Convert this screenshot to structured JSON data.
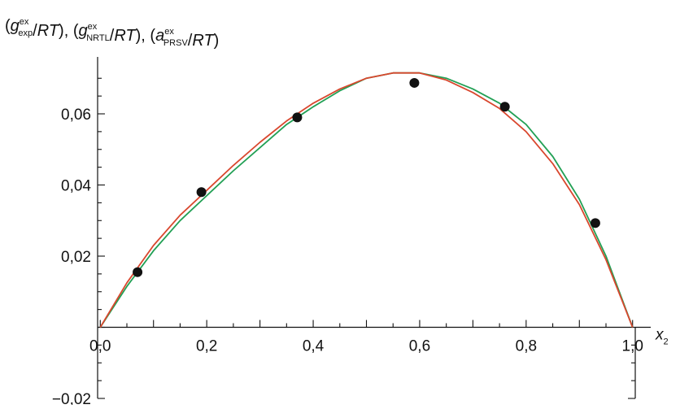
{
  "chart_data": {
    "type": "line",
    "title_parts": [
      {
        "text": "(",
        "italic": false
      },
      {
        "text": "g",
        "italic": true
      },
      {
        "sup": "ex",
        "sub": "exp"
      },
      {
        "text": "/",
        "italic": false
      },
      {
        "text": "RT",
        "italic": true
      },
      {
        "text": "), (",
        "italic": false
      },
      {
        "text": "g",
        "italic": true
      },
      {
        "sup": "ex",
        "sub": "NRTL"
      },
      {
        "text": "/",
        "italic": false
      },
      {
        "text": "RT",
        "italic": true
      },
      {
        "text": "), (",
        "italic": false
      },
      {
        "text": "a",
        "italic": true
      },
      {
        "sup": "ex",
        "sub": "PRSV"
      },
      {
        "text": "/",
        "italic": false
      },
      {
        "text": "RT",
        "italic": true
      },
      {
        "text": ")",
        "italic": false
      }
    ],
    "xlabel": "x",
    "xlabel_sub": "2",
    "xlim": [
      -0.005,
      1.005
    ],
    "ylim": [
      -0.02,
      0.076
    ],
    "x_ticks": [
      0.0,
      0.2,
      0.4,
      0.6,
      0.8,
      1.0
    ],
    "x_tick_labels": [
      "0,0",
      "0,2",
      "0,4",
      "0,6",
      "0,8",
      "1,0"
    ],
    "y_ticks": [
      -0.02,
      0.02,
      0.04,
      0.06
    ],
    "y_tick_labels": [
      "−0,02",
      "0,02",
      "0,04",
      "0,06"
    ],
    "grid": false,
    "legend": "none",
    "points": {
      "color": "#111111",
      "x": [
        0.07,
        0.19,
        0.37,
        0.59,
        0.76,
        0.93
      ],
      "y": [
        0.0155,
        0.038,
        0.059,
        0.0687,
        0.062,
        0.0293
      ]
    },
    "series": [
      {
        "color": "#22a055",
        "x": [
          0.0,
          0.05,
          0.1,
          0.15,
          0.2,
          0.25,
          0.3,
          0.35,
          0.4,
          0.45,
          0.5,
          0.55,
          0.6,
          0.65,
          0.7,
          0.75,
          0.8,
          0.85,
          0.9,
          0.95,
          1.0
        ],
        "y": [
          0.0,
          0.0115,
          0.0215,
          0.03,
          0.037,
          0.044,
          0.0505,
          0.057,
          0.062,
          0.0665,
          0.07,
          0.0715,
          0.0715,
          0.07,
          0.067,
          0.063,
          0.057,
          0.048,
          0.036,
          0.02,
          0.0
        ]
      },
      {
        "color": "#d9472e",
        "x": [
          0.0,
          0.05,
          0.1,
          0.15,
          0.2,
          0.25,
          0.3,
          0.35,
          0.4,
          0.45,
          0.5,
          0.55,
          0.6,
          0.65,
          0.7,
          0.75,
          0.8,
          0.85,
          0.9,
          0.95,
          1.0
        ],
        "y": [
          0.0,
          0.0125,
          0.023,
          0.0315,
          0.0385,
          0.0455,
          0.052,
          0.058,
          0.063,
          0.067,
          0.07,
          0.0715,
          0.0715,
          0.0695,
          0.066,
          0.0615,
          0.055,
          0.046,
          0.0345,
          0.019,
          0.0
        ]
      }
    ]
  }
}
